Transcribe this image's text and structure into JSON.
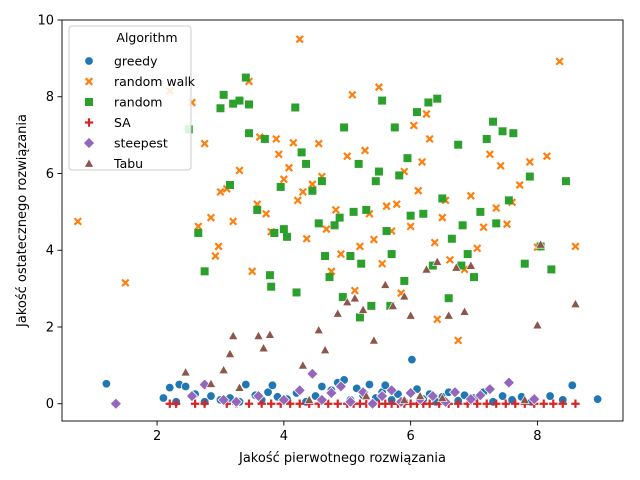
{
  "chart_data": {
    "type": "scatter",
    "xlabel": "Jakość pierwotnego rozwiązania",
    "ylabel": "Jakość ostatecznego rozwiązania",
    "xlim": [
      0.5,
      9.35
    ],
    "ylim": [
      -0.45,
      10
    ],
    "xticks": [
      2,
      4,
      6,
      8
    ],
    "yticks": [
      0,
      2,
      4,
      6,
      8,
      10
    ],
    "grid": false,
    "legend": {
      "title": "Algorithm",
      "placement": "top-left"
    },
    "series": [
      {
        "name": "greedy",
        "marker": "circle",
        "color": "#1f77b4",
        "points": [
          [
            1.2,
            0.52
          ],
          [
            2.1,
            0.15
          ],
          [
            2.2,
            0.42
          ],
          [
            2.3,
            0.05
          ],
          [
            2.35,
            0.5
          ],
          [
            2.45,
            0.45
          ],
          [
            2.6,
            0.25
          ],
          [
            2.75,
            0.05
          ],
          [
            2.85,
            0.2
          ],
          [
            3.0,
            0.1
          ],
          [
            3.15,
            0.15
          ],
          [
            3.3,
            0.05
          ],
          [
            3.4,
            0.5
          ],
          [
            3.55,
            0.22
          ],
          [
            3.65,
            0.1
          ],
          [
            3.75,
            0.3
          ],
          [
            3.82,
            0.48
          ],
          [
            3.9,
            0.18
          ],
          [
            4.05,
            0.12
          ],
          [
            4.2,
            0.28
          ],
          [
            4.35,
            0.05
          ],
          [
            4.5,
            0.2
          ],
          [
            4.6,
            0.45
          ],
          [
            4.75,
            0.35
          ],
          [
            4.85,
            0.55
          ],
          [
            4.95,
            0.62
          ],
          [
            5.05,
            0.1
          ],
          [
            5.15,
            0.4
          ],
          [
            5.25,
            0.22
          ],
          [
            5.35,
            0.5
          ],
          [
            5.45,
            0.15
          ],
          [
            5.55,
            0.3
          ],
          [
            5.6,
            0.48
          ],
          [
            5.7,
            0.1
          ],
          [
            5.8,
            0.25
          ],
          [
            5.9,
            0.05
          ],
          [
            6.02,
            1.15
          ],
          [
            6.1,
            0.38
          ],
          [
            6.2,
            0.12
          ],
          [
            6.3,
            0.25
          ],
          [
            6.4,
            0.05
          ],
          [
            6.5,
            0.18
          ],
          [
            6.6,
            0.3
          ],
          [
            6.75,
            0.08
          ],
          [
            6.85,
            0.22
          ],
          [
            7.0,
            0.15
          ],
          [
            7.15,
            0.3
          ],
          [
            7.3,
            0.05
          ],
          [
            7.45,
            0.2
          ],
          [
            7.6,
            0.1
          ],
          [
            7.75,
            0.18
          ],
          [
            7.9,
            0.05
          ],
          [
            8.2,
            0.2
          ],
          [
            8.4,
            0.1
          ],
          [
            8.55,
            0.48
          ],
          [
            8.95,
            0.12
          ]
        ]
      },
      {
        "name": "random walk",
        "marker": "x",
        "color": "#ff7f0e",
        "points": [
          [
            0.75,
            4.75
          ],
          [
            1.5,
            3.15
          ],
          [
            2.2,
            8.15
          ],
          [
            2.55,
            7.85
          ],
          [
            2.65,
            4.62
          ],
          [
            2.75,
            6.78
          ],
          [
            2.85,
            4.85
          ],
          [
            2.92,
            3.85
          ],
          [
            2.97,
            4.1
          ],
          [
            3.0,
            5.52
          ],
          [
            3.1,
            5.6
          ],
          [
            3.2,
            4.75
          ],
          [
            3.3,
            6.08
          ],
          [
            3.45,
            8.4
          ],
          [
            3.5,
            3.45
          ],
          [
            3.58,
            5.2
          ],
          [
            3.62,
            6.95
          ],
          [
            3.72,
            4.95
          ],
          [
            3.8,
            4.48
          ],
          [
            3.88,
            6.9
          ],
          [
            3.92,
            6.5
          ],
          [
            4.0,
            5.85
          ],
          [
            4.08,
            6.15
          ],
          [
            4.15,
            6.8
          ],
          [
            4.22,
            5.3
          ],
          [
            4.25,
            9.5
          ],
          [
            4.3,
            5.52
          ],
          [
            4.36,
            4.3
          ],
          [
            4.45,
            5.72
          ],
          [
            4.55,
            6.78
          ],
          [
            4.6,
            5.92
          ],
          [
            4.67,
            4.55
          ],
          [
            4.75,
            3.45
          ],
          [
            4.82,
            5.05
          ],
          [
            4.9,
            3.9
          ],
          [
            5.0,
            6.45
          ],
          [
            5.08,
            8.05
          ],
          [
            5.12,
            2.95
          ],
          [
            5.2,
            4.1
          ],
          [
            5.28,
            6.6
          ],
          [
            5.35,
            4.95
          ],
          [
            5.42,
            4.28
          ],
          [
            5.5,
            8.25
          ],
          [
            5.55,
            3.65
          ],
          [
            5.62,
            5.15
          ],
          [
            5.7,
            4.5
          ],
          [
            5.78,
            5.2
          ],
          [
            5.85,
            2.88
          ],
          [
            5.9,
            6.05
          ],
          [
            6.0,
            4.62
          ],
          [
            6.05,
            7.25
          ],
          [
            6.12,
            5.55
          ],
          [
            6.18,
            6.3
          ],
          [
            6.25,
            7.55
          ],
          [
            6.3,
            6.9
          ],
          [
            6.38,
            4.2
          ],
          [
            6.42,
            2.2
          ],
          [
            6.5,
            4.85
          ],
          [
            6.55,
            5.3
          ],
          [
            6.62,
            3.75
          ],
          [
            6.75,
            1.65
          ],
          [
            6.85,
            3.5
          ],
          [
            6.95,
            5.42
          ],
          [
            7.05,
            4.05
          ],
          [
            7.15,
            4.6
          ],
          [
            7.25,
            6.5
          ],
          [
            7.35,
            5.1
          ],
          [
            7.42,
            6.2
          ],
          [
            7.52,
            4.68
          ],
          [
            7.6,
            5.25
          ],
          [
            7.72,
            5.7
          ],
          [
            7.88,
            6.3
          ],
          [
            8.0,
            4.08
          ],
          [
            8.15,
            6.45
          ],
          [
            8.35,
            8.92
          ],
          [
            8.6,
            4.1
          ]
        ]
      },
      {
        "name": "random",
        "marker": "square",
        "color": "#2ca02c",
        "points": [
          [
            2.5,
            7.15
          ],
          [
            2.65,
            4.45
          ],
          [
            2.75,
            3.45
          ],
          [
            3.0,
            7.7
          ],
          [
            3.05,
            8.05
          ],
          [
            3.15,
            5.7
          ],
          [
            3.2,
            7.82
          ],
          [
            3.3,
            7.9
          ],
          [
            3.4,
            8.5
          ],
          [
            3.45,
            7.8
          ],
          [
            3.45,
            7.05
          ],
          [
            3.58,
            5.05
          ],
          [
            3.7,
            6.9
          ],
          [
            3.78,
            3.35
          ],
          [
            3.8,
            3.05
          ],
          [
            3.85,
            4.45
          ],
          [
            3.95,
            5.65
          ],
          [
            4.0,
            4.55
          ],
          [
            4.05,
            4.35
          ],
          [
            4.18,
            7.72
          ],
          [
            4.2,
            2.9
          ],
          [
            4.28,
            6.55
          ],
          [
            4.35,
            6.25
          ],
          [
            4.45,
            5.55
          ],
          [
            4.55,
            4.7
          ],
          [
            4.6,
            5.8
          ],
          [
            4.65,
            3.85
          ],
          [
            4.72,
            3.3
          ],
          [
            4.8,
            4.65
          ],
          [
            4.88,
            4.85
          ],
          [
            4.93,
            2.78
          ],
          [
            4.95,
            7.2
          ],
          [
            5.05,
            3.85
          ],
          [
            5.1,
            5.0
          ],
          [
            5.18,
            6.25
          ],
          [
            5.22,
            3.65
          ],
          [
            5.3,
            5.05
          ],
          [
            5.38,
            2.55
          ],
          [
            5.45,
            5.8
          ],
          [
            5.5,
            6.05
          ],
          [
            5.55,
            7.9
          ],
          [
            5.62,
            4.5
          ],
          [
            5.7,
            3.9
          ],
          [
            5.75,
            7.2
          ],
          [
            5.82,
            5.95
          ],
          [
            5.9,
            3.2
          ],
          [
            5.95,
            6.4
          ],
          [
            6.0,
            4.9
          ],
          [
            6.1,
            7.6
          ],
          [
            6.2,
            4.95
          ],
          [
            6.28,
            7.85
          ],
          [
            6.35,
            3.6
          ],
          [
            6.42,
            7.95
          ],
          [
            6.5,
            5.35
          ],
          [
            6.6,
            2.75
          ],
          [
            6.65,
            4.3
          ],
          [
            6.75,
            6.75
          ],
          [
            6.82,
            4.65
          ],
          [
            6.9,
            3.9
          ],
          [
            7.0,
            3.3
          ],
          [
            7.1,
            5.0
          ],
          [
            7.2,
            6.9
          ],
          [
            7.3,
            7.35
          ],
          [
            7.35,
            4.7
          ],
          [
            7.45,
            7.1
          ],
          [
            7.55,
            5.3
          ],
          [
            7.62,
            7.05
          ],
          [
            7.8,
            3.65
          ],
          [
            7.88,
            5.92
          ],
          [
            8.05,
            4.1
          ],
          [
            8.22,
            3.5
          ],
          [
            8.45,
            5.8
          ],
          [
            5.2,
            2.25
          ],
          [
            5.68,
            2.55
          ],
          [
            6.8,
            3.6
          ]
        ]
      },
      {
        "name": "SA",
        "marker": "plus",
        "color": "#d62728",
        "points": [
          [
            2.2,
            0.0
          ],
          [
            2.3,
            0.0
          ],
          [
            2.6,
            0.0
          ],
          [
            2.75,
            0.0
          ],
          [
            3.1,
            0.0
          ],
          [
            3.25,
            0.0
          ],
          [
            3.45,
            0.0
          ],
          [
            3.65,
            0.0
          ],
          [
            3.8,
            0.0
          ],
          [
            3.95,
            0.0
          ],
          [
            4.1,
            0.0
          ],
          [
            4.25,
            0.0
          ],
          [
            4.4,
            0.0
          ],
          [
            4.55,
            0.0
          ],
          [
            4.7,
            0.0
          ],
          [
            4.85,
            0.0
          ],
          [
            5.0,
            0.0
          ],
          [
            5.1,
            0.0
          ],
          [
            5.2,
            0.0
          ],
          [
            5.3,
            0.0
          ],
          [
            5.4,
            0.0
          ],
          [
            5.5,
            0.0
          ],
          [
            5.6,
            0.0
          ],
          [
            5.7,
            0.0
          ],
          [
            5.8,
            0.0
          ],
          [
            5.9,
            0.0
          ],
          [
            6.0,
            0.0
          ],
          [
            6.1,
            0.0
          ],
          [
            6.2,
            0.0
          ],
          [
            6.3,
            0.0
          ],
          [
            6.45,
            0.0
          ],
          [
            6.6,
            0.0
          ],
          [
            6.75,
            0.0
          ],
          [
            6.9,
            0.0
          ],
          [
            7.05,
            0.0
          ],
          [
            7.2,
            0.0
          ],
          [
            7.35,
            0.0
          ],
          [
            7.5,
            0.0
          ],
          [
            7.65,
            0.0
          ],
          [
            7.8,
            0.0
          ],
          [
            7.95,
            0.0
          ],
          [
            8.1,
            0.0
          ],
          [
            8.25,
            0.0
          ],
          [
            8.4,
            0.0
          ],
          [
            8.6,
            0.0
          ]
        ]
      },
      {
        "name": "steepest",
        "marker": "diamond",
        "color": "#9467bd",
        "points": [
          [
            1.35,
            0.0
          ],
          [
            2.55,
            0.2
          ],
          [
            2.75,
            0.5
          ],
          [
            3.05,
            0.1
          ],
          [
            3.25,
            0.05
          ],
          [
            3.6,
            0.2
          ],
          [
            4.0,
            0.1
          ],
          [
            4.25,
            0.35
          ],
          [
            4.45,
            0.78
          ],
          [
            4.6,
            0.1
          ],
          [
            4.75,
            0.28
          ],
          [
            4.9,
            0.45
          ],
          [
            5.05,
            0.05
          ],
          [
            5.25,
            0.3
          ],
          [
            5.4,
            0.0
          ],
          [
            5.55,
            0.2
          ],
          [
            5.7,
            0.35
          ],
          [
            5.85,
            0.05
          ],
          [
            6.0,
            0.28
          ],
          [
            6.15,
            0.12
          ],
          [
            6.35,
            0.2
          ],
          [
            6.55,
            0.05
          ],
          [
            6.7,
            0.3
          ],
          [
            6.95,
            0.12
          ],
          [
            7.1,
            0.22
          ],
          [
            7.25,
            0.38
          ],
          [
            7.55,
            0.55
          ],
          [
            7.95,
            0.12
          ]
        ]
      },
      {
        "name": "Tabu",
        "marker": "triangle",
        "color": "#8c564b",
        "points": [
          [
            2.45,
            0.82
          ],
          [
            2.85,
            0.52
          ],
          [
            3.05,
            0.88
          ],
          [
            3.15,
            1.3
          ],
          [
            3.2,
            1.77
          ],
          [
            3.3,
            0.42
          ],
          [
            3.6,
            1.77
          ],
          [
            3.68,
            1.45
          ],
          [
            3.78,
            1.8
          ],
          [
            4.3,
            1.0
          ],
          [
            4.55,
            1.92
          ],
          [
            4.65,
            1.4
          ],
          [
            4.85,
            2.35
          ],
          [
            5.0,
            2.65
          ],
          [
            5.12,
            2.75
          ],
          [
            5.25,
            2.45
          ],
          [
            5.42,
            1.65
          ],
          [
            5.6,
            3.1
          ],
          [
            5.72,
            2.55
          ],
          [
            5.9,
            2.8
          ],
          [
            6.0,
            2.3
          ],
          [
            6.25,
            3.5
          ],
          [
            6.42,
            3.7
          ],
          [
            6.6,
            2.3
          ],
          [
            6.72,
            3.55
          ],
          [
            6.85,
            2.4
          ],
          [
            6.95,
            3.6
          ],
          [
            7.8,
            0.1
          ],
          [
            8.0,
            2.05
          ],
          [
            8.05,
            4.15
          ],
          [
            8.6,
            2.6
          ],
          [
            6.15,
            0.2
          ],
          [
            5.3,
            0.2
          ],
          [
            4.4,
            0.1
          ],
          [
            5.9,
            0.1
          ],
          [
            6.5,
            0.15
          ]
        ]
      }
    ]
  }
}
